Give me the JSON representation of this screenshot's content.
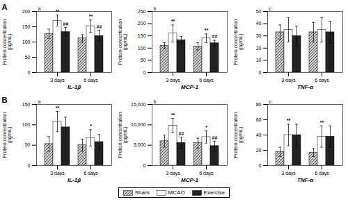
{
  "chart_data": [
    {
      "type": "bar",
      "row_label": "A",
      "panel_label": "a",
      "xlabel": "IL-1β",
      "ylabel": "Protein concentration\n(pg/mL)",
      "categories": [
        "3 days",
        "6 days"
      ],
      "series": [
        {
          "name": "Sham",
          "color": "#cccccc",
          "values": [
            127,
            112
          ],
          "errors": [
            15,
            12
          ]
        },
        {
          "name": "MCAO",
          "color": "#ffffff",
          "values": [
            170,
            152
          ],
          "errors": [
            18,
            20
          ]
        },
        {
          "name": "Exercise",
          "color": "#222222",
          "values": [
            133,
            120
          ],
          "errors": [
            15,
            18
          ]
        }
      ],
      "annotations": [
        {
          "text": "**",
          "category": "3 days",
          "series": "MCAO"
        },
        {
          "text": "**",
          "category": "6 days",
          "series": "MCAO"
        },
        {
          "text": "##",
          "category": "3 days",
          "series": "Exercise"
        },
        {
          "text": "##",
          "category": "6 days",
          "series": "Exercise"
        }
      ],
      "ylim": [
        0,
        200
      ],
      "yticks": [
        0,
        50,
        100,
        150,
        200
      ],
      "legend": "bottom"
    },
    {
      "type": "bar",
      "panel_label": "b",
      "xlabel": "MCP-1",
      "ylabel": "Protein concentration\n(pg/mL)",
      "categories": [
        "3 days",
        "6 days"
      ],
      "series": [
        {
          "name": "Sham",
          "color": "#cccccc",
          "values": [
            110,
            107
          ],
          "errors": [
            12,
            15
          ]
        },
        {
          "name": "MCAO",
          "color": "#ffffff",
          "values": [
            160,
            140
          ],
          "errors": [
            35,
            18
          ]
        },
        {
          "name": "Exercise",
          "color": "#222222",
          "values": [
            133,
            120
          ],
          "errors": [
            14,
            12
          ]
        }
      ],
      "annotations": [
        {
          "text": "**",
          "category": "3 days",
          "series": "MCAO"
        },
        {
          "text": "**",
          "category": "6 days",
          "series": "MCAO"
        },
        {
          "text": "##",
          "category": "6 days",
          "series": "Exercise"
        }
      ],
      "ylim": [
        0,
        250
      ],
      "yticks": [
        0,
        50,
        100,
        150,
        200,
        250
      ],
      "legend": "bottom"
    },
    {
      "type": "bar",
      "panel_label": "c",
      "xlabel": "TNF-α",
      "ylabel": "Protein concentration\n(pg/mL)",
      "categories": [
        "3 days",
        "6 days"
      ],
      "series": [
        {
          "name": "Sham",
          "color": "#cccccc",
          "values": [
            33,
            33
          ],
          "errors": [
            6,
            8
          ]
        },
        {
          "name": "MCAO",
          "color": "#ffffff",
          "values": [
            35,
            35
          ],
          "errors": [
            10,
            10
          ]
        },
        {
          "name": "Exercise",
          "color": "#222222",
          "values": [
            30,
            33
          ],
          "errors": [
            8,
            9
          ]
        }
      ],
      "ylim": [
        0,
        50
      ],
      "yticks": [
        0,
        10,
        20,
        30,
        40,
        50
      ],
      "legend": "bottom"
    },
    {
      "type": "bar",
      "row_label": "B",
      "panel_label": "a",
      "xlabel": "IL-1β",
      "ylabel": "Protein concentration\n(pg/mL)",
      "categories": [
        "3 days",
        "6 days"
      ],
      "series": [
        {
          "name": "Sham",
          "color": "#cccccc",
          "values": [
            53,
            50
          ],
          "errors": [
            18,
            15
          ]
        },
        {
          "name": "MCAO",
          "color": "#ffffff",
          "values": [
            108,
            68
          ],
          "errors": [
            25,
            20
          ]
        },
        {
          "name": "Exercise",
          "color": "#222222",
          "values": [
            94,
            58
          ],
          "errors": [
            25,
            18
          ]
        }
      ],
      "annotations": [
        {
          "text": "**",
          "category": "3 days",
          "series": "MCAO"
        },
        {
          "text": "*",
          "category": "6 days",
          "series": "MCAO"
        }
      ],
      "ylim": [
        0,
        150
      ],
      "yticks": [
        0,
        50,
        100,
        150
      ],
      "legend": "bottom"
    },
    {
      "type": "bar",
      "panel_label": "b",
      "xlabel": "MCP-1",
      "ylabel": "Protein concentration\n(pg/mL)",
      "categories": [
        "3 days",
        "6 days"
      ],
      "series": [
        {
          "name": "Sham",
          "color": "#cccccc",
          "values": [
            6000,
            5500
          ],
          "errors": [
            1500,
            1200
          ]
        },
        {
          "name": "MCAO",
          "color": "#ffffff",
          "values": [
            9800,
            7000
          ],
          "errors": [
            1800,
            1500
          ]
        },
        {
          "name": "Exercise",
          "color": "#222222",
          "values": [
            5600,
            4800
          ],
          "errors": [
            1400,
            1200
          ]
        }
      ],
      "annotations": [
        {
          "text": "**",
          "category": "3 days",
          "series": "MCAO"
        },
        {
          "text": "*",
          "category": "6 days",
          "series": "MCAO"
        },
        {
          "text": "##",
          "category": "3 days",
          "series": "Exercise"
        },
        {
          "text": "##",
          "category": "6 days",
          "series": "Exercise"
        }
      ],
      "ylim": [
        0,
        15000
      ],
      "yticks": [
        0,
        {
          "value": 5000,
          "label": "5,000"
        },
        {
          "value": 10000,
          "label": "10,000"
        },
        {
          "value": 15000,
          "label": "15,000"
        }
      ],
      "legend": "bottom"
    },
    {
      "type": "bar",
      "panel_label": "c",
      "xlabel": "TNF-α",
      "ylabel": "Protein concentration\n(pg/mL)",
      "categories": [
        "3 days",
        "6 days"
      ],
      "series": [
        {
          "name": "Sham",
          "color": "#cccccc",
          "values": [
            18,
            17
          ],
          "errors": [
            6,
            5
          ]
        },
        {
          "name": "MCAO",
          "color": "#ffffff",
          "values": [
            40,
            38
          ],
          "errors": [
            14,
            14
          ]
        },
        {
          "name": "Exercise",
          "color": "#222222",
          "values": [
            40,
            38
          ],
          "errors": [
            14,
            14
          ]
        }
      ],
      "annotations": [
        {
          "text": "**",
          "category": "3 days",
          "series": "MCAO"
        },
        {
          "text": "**",
          "category": "6 days",
          "series": "MCAO"
        }
      ],
      "ylim": [
        0,
        80
      ],
      "yticks": [
        0,
        20,
        40,
        60,
        80
      ],
      "legend": "bottom"
    }
  ]
}
